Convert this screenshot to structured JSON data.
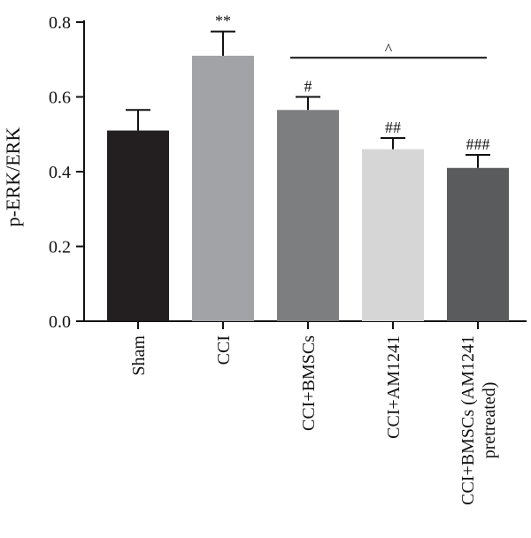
{
  "chart_data": {
    "type": "bar",
    "title": "",
    "xlabel": "",
    "ylabel": "p-ERK/ERK",
    "ylim": [
      0,
      0.8
    ],
    "yticks": [
      "0.0",
      "0.2",
      "0.4",
      "0.6",
      "0.8"
    ],
    "ytick_values": [
      0,
      0.2,
      0.4,
      0.6,
      0.8
    ],
    "grid": false,
    "categories": [
      [
        "Sham"
      ],
      [
        "CCI"
      ],
      [
        "CCI+BMSCs"
      ],
      [
        "CCI+AM1241"
      ],
      [
        "CCI+BMSCs (AM1241",
        "pretreated)"
      ]
    ],
    "values": [
      0.51,
      0.71,
      0.565,
      0.46,
      0.41
    ],
    "errors": [
      0.055,
      0.065,
      0.035,
      0.03,
      0.035
    ],
    "significance": [
      "",
      "**",
      "#",
      "##",
      "###"
    ],
    "colors": [
      "#231f20",
      "#a2a3a6",
      "#7d7e80",
      "#d6d6d6",
      "#5a5b5d"
    ],
    "bracket": {
      "from": 2,
      "to": 4,
      "y": 0.7,
      "label": "^"
    }
  }
}
